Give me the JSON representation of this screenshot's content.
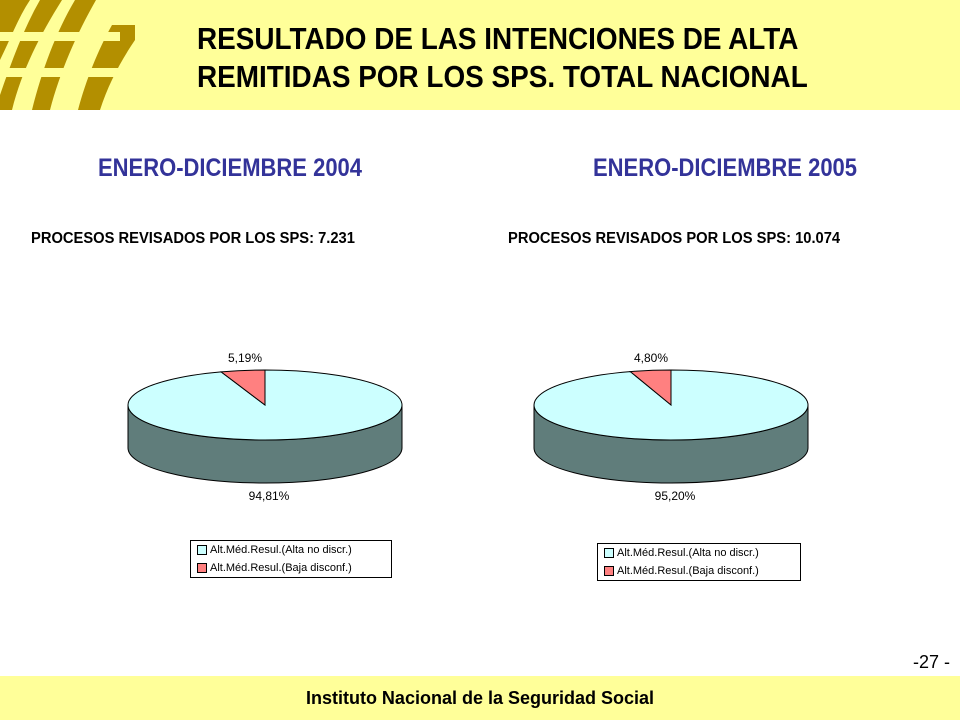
{
  "colors": {
    "header_bg": "#ffff99",
    "logo_color": "#b38f00",
    "period_color": "#333399",
    "slice_alta": "#ccffff",
    "slice_alta_side": "#607d7b",
    "slice_baja": "#ff8080"
  },
  "header": {
    "logo_icon": "inss-logo-icon",
    "title_line1": "RESULTADO DE LAS INTENCIONES DE ALTA",
    "title_line2": "REMITIDAS POR LOS SPS. TOTAL NACIONAL"
  },
  "panels": [
    {
      "period": "ENERO-DICIEMBRE 2004",
      "procesos": "PROCESOS REVISADOS POR LOS SPS: 7.231"
    },
    {
      "period": "ENERO-DICIEMBRE 2005",
      "procesos": "PROCESOS REVISADOS POR LOS SPS: 10.074"
    }
  ],
  "chart_data": [
    {
      "type": "pie",
      "style": "3d",
      "categories": [
        "Alt.Méd.Resul.(Alta no discr.)",
        "Alt.Méd.Resul.(Baja disconf.)"
      ],
      "values": [
        94.81,
        5.19
      ],
      "data_labels": [
        "94,81%",
        "5,19%"
      ],
      "legend": [
        "Alt.Méd.Resul.(Alta no discr.)",
        "Alt.Méd.Resul.(Baja disconf.)"
      ],
      "legend_placement": "bottom"
    },
    {
      "type": "pie",
      "style": "3d",
      "categories": [
        "Alt.Méd.Resul.(Alta no discr.)",
        "Alt.Méd.Resul.(Baja disconf.)"
      ],
      "values": [
        95.2,
        4.8
      ],
      "data_labels": [
        "95,20%",
        "4,80%"
      ],
      "legend": [
        "Alt.Méd.Resul.(Alta no discr.)",
        "Alt.Méd.Resul.(Baja disconf.)"
      ],
      "legend_placement": "bottom"
    }
  ],
  "footer": {
    "institution": "Instituto Nacional de la Seguridad Social",
    "page_number": "-27 -"
  }
}
